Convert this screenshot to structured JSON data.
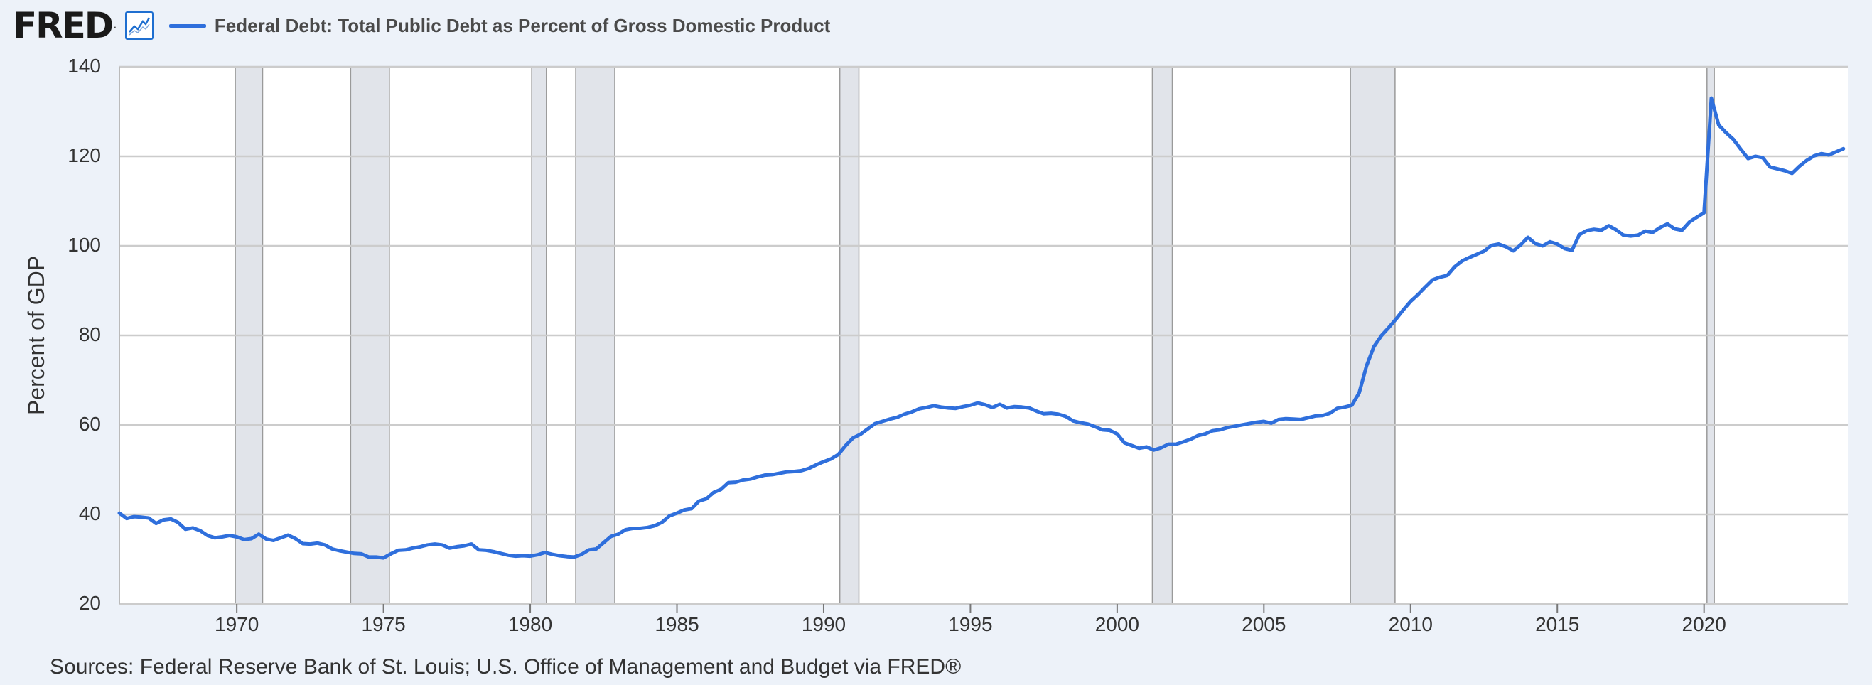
{
  "header": {
    "logo_text": "FRED",
    "logo_reg": ".",
    "legend_title": "Federal Debt: Total Public Debt as Percent of Gross Domestic Product"
  },
  "icons": {
    "graph_icon": "line-chart-icon"
  },
  "footer": {
    "source_text": "Sources: Federal Reserve Bank of St. Louis; U.S. Office of Management and Budget via FRED®"
  },
  "colors": {
    "background": "#edf2f9",
    "plot_background": "#ffffff",
    "series": "#2f6fdc",
    "recession": "#e1e4ea",
    "grid": "#cccccc"
  },
  "chart_data": {
    "type": "line",
    "title": "Federal Debt: Total Public Debt as Percent of Gross Domestic Product",
    "ylabel": "Percent of GDP",
    "xlabel": "",
    "ylim": [
      20,
      140
    ],
    "xlim": [
      1966.0,
      2024.9
    ],
    "yticks": [
      20,
      40,
      60,
      80,
      100,
      120,
      140
    ],
    "xticks": [
      1970,
      1975,
      1980,
      1985,
      1990,
      1995,
      2000,
      2005,
      2010,
      2015,
      2020
    ],
    "grid": true,
    "recessions": [
      [
        1969.95,
        1970.88
      ],
      [
        1973.88,
        1975.2
      ],
      [
        1980.05,
        1980.55
      ],
      [
        1981.55,
        1982.88
      ],
      [
        1990.55,
        1991.2
      ],
      [
        2001.2,
        2001.88
      ],
      [
        2007.95,
        2009.47
      ],
      [
        2020.1,
        2020.35
      ]
    ],
    "series": [
      {
        "x": [
          1966.0,
          1966.25,
          1966.5,
          1966.75,
          1967.0,
          1967.25,
          1967.5,
          1967.75,
          1968.0,
          1968.25,
          1968.5,
          1968.75,
          1969.0,
          1969.25,
          1969.5,
          1969.75,
          1970.0,
          1970.25,
          1970.5,
          1970.75,
          1971.0,
          1971.25,
          1971.5,
          1971.75,
          1972.0,
          1972.25,
          1972.5,
          1972.75,
          1973.0,
          1973.25,
          1973.5,
          1973.75,
          1974.0,
          1974.25,
          1974.5,
          1974.75,
          1975.0,
          1975.25,
          1975.5,
          1975.75,
          1976.0,
          1976.25,
          1976.5,
          1976.75,
          1977.0,
          1977.25,
          1977.5,
          1977.75,
          1978.0,
          1978.25,
          1978.5,
          1978.75,
          1979.0,
          1979.25,
          1979.5,
          1979.75,
          1980.0,
          1980.25,
          1980.5,
          1980.75,
          1981.0,
          1981.25,
          1981.5,
          1981.75,
          1982.0,
          1982.25,
          1982.5,
          1982.75,
          1983.0,
          1983.25,
          1983.5,
          1983.75,
          1984.0,
          1984.25,
          1984.5,
          1984.75,
          1985.0,
          1985.25,
          1985.5,
          1985.75,
          1986.0,
          1986.25,
          1986.5,
          1986.75,
          1987.0,
          1987.25,
          1987.5,
          1987.75,
          1988.0,
          1988.25,
          1988.5,
          1988.75,
          1989.0,
          1989.25,
          1989.5,
          1989.75,
          1990.0,
          1990.25,
          1990.5,
          1990.75,
          1991.0,
          1991.25,
          1991.5,
          1991.75,
          1992.0,
          1992.25,
          1992.5,
          1992.75,
          1993.0,
          1993.25,
          1993.5,
          1993.75,
          1994.0,
          1994.25,
          1994.5,
          1994.75,
          1995.0,
          1995.25,
          1995.5,
          1995.75,
          1996.0,
          1996.25,
          1996.5,
          1996.75,
          1997.0,
          1997.25,
          1997.5,
          1997.75,
          1998.0,
          1998.25,
          1998.5,
          1998.75,
          1999.0,
          1999.25,
          1999.5,
          1999.75,
          2000.0,
          2000.25,
          2000.5,
          2000.75,
          2001.0,
          2001.25,
          2001.5,
          2001.75,
          2002.0,
          2002.25,
          2002.5,
          2002.75,
          2003.0,
          2003.25,
          2003.5,
          2003.75,
          2004.0,
          2004.25,
          2004.5,
          2004.75,
          2005.0,
          2005.25,
          2005.5,
          2005.75,
          2006.0,
          2006.25,
          2006.5,
          2006.75,
          2007.0,
          2007.25,
          2007.5,
          2007.75,
          2008.0,
          2008.25,
          2008.5,
          2008.75,
          2009.0,
          2009.25,
          2009.5,
          2009.75,
          2010.0,
          2010.25,
          2010.5,
          2010.75,
          2011.0,
          2011.25,
          2011.5,
          2011.75,
          2012.0,
          2012.25,
          2012.5,
          2012.75,
          2013.0,
          2013.25,
          2013.5,
          2013.75,
          2014.0,
          2014.25,
          2014.5,
          2014.75,
          2015.0,
          2015.25,
          2015.5,
          2015.75,
          2016.0,
          2016.25,
          2016.5,
          2016.75,
          2017.0,
          2017.25,
          2017.5,
          2017.75,
          2018.0,
          2018.25,
          2018.5,
          2018.75,
          2019.0,
          2019.25,
          2019.5,
          2019.75,
          2020.0,
          2020.25,
          2020.5,
          2020.75,
          2021.0,
          2021.25,
          2021.5,
          2021.75,
          2022.0,
          2022.25,
          2022.5,
          2022.75,
          2023.0,
          2023.25,
          2023.5,
          2023.75,
          2024.0,
          2024.25,
          2024.5,
          2024.75
        ],
        "values": [
          40.3,
          39.1,
          39.5,
          39.4,
          39.2,
          38.0,
          38.8,
          39.0,
          38.2,
          36.7,
          37.0,
          36.4,
          35.3,
          34.8,
          35.0,
          35.3,
          35.0,
          34.4,
          34.6,
          35.6,
          34.5,
          34.2,
          34.8,
          35.4,
          34.6,
          33.5,
          33.4,
          33.6,
          33.2,
          32.3,
          31.9,
          31.6,
          31.3,
          31.2,
          30.5,
          30.5,
          30.3,
          31.2,
          32.0,
          32.1,
          32.5,
          32.8,
          33.2,
          33.4,
          33.2,
          32.5,
          32.8,
          33.0,
          33.4,
          32.1,
          32.0,
          31.7,
          31.3,
          30.9,
          30.7,
          30.8,
          30.7,
          31.0,
          31.5,
          31.1,
          30.8,
          30.6,
          30.5,
          31.1,
          32.1,
          32.3,
          33.7,
          35.1,
          35.6,
          36.6,
          36.9,
          36.9,
          37.1,
          37.5,
          38.3,
          39.7,
          40.3,
          41.0,
          41.3,
          43.0,
          43.5,
          44.9,
          45.6,
          47.1,
          47.2,
          47.7,
          47.9,
          48.4,
          48.8,
          48.9,
          49.2,
          49.5,
          49.6,
          49.8,
          50.3,
          51.1,
          51.8,
          52.4,
          53.4,
          55.4,
          57.1,
          57.9,
          59.1,
          60.3,
          60.8,
          61.3,
          61.7,
          62.4,
          62.9,
          63.6,
          63.9,
          64.3,
          64.0,
          63.8,
          63.7,
          64.1,
          64.4,
          64.9,
          64.5,
          63.9,
          64.6,
          63.8,
          64.1,
          64.0,
          63.8,
          63.1,
          62.5,
          62.6,
          62.4,
          61.9,
          60.9,
          60.5,
          60.2,
          59.6,
          58.9,
          58.8,
          58.0,
          56.0,
          55.4,
          54.8,
          55.1,
          54.4,
          54.9,
          55.7,
          55.7,
          56.2,
          56.8,
          57.6,
          58.0,
          58.7,
          58.9,
          59.4,
          59.7,
          60.0,
          60.3,
          60.6,
          60.8,
          60.4,
          61.2,
          61.4,
          61.3,
          61.2,
          61.6,
          62.0,
          62.1,
          62.6,
          63.7,
          64.0,
          64.4,
          67.2,
          73.2,
          77.5,
          79.9,
          81.7,
          83.6,
          85.7,
          87.6,
          89.1,
          90.8,
          92.4,
          93.0,
          93.4,
          95.3,
          96.6,
          97.4,
          98.1,
          98.8,
          100.1,
          100.4,
          99.8,
          98.9,
          100.2,
          101.9,
          100.5,
          100.0,
          100.9,
          100.4,
          99.4,
          99.0,
          102.5,
          103.4,
          103.7,
          103.5,
          104.5,
          103.6,
          102.4,
          102.2,
          102.4,
          103.3,
          103.0,
          104.1,
          104.9,
          103.8,
          103.5,
          105.3,
          106.4,
          107.4,
          133.0,
          127.0,
          125.3,
          123.8,
          121.6,
          119.5,
          120.0,
          119.7,
          117.6,
          117.2,
          116.8,
          116.2,
          117.8,
          119.1,
          120.1,
          120.6,
          120.3,
          121.0,
          121.7
        ]
      }
    ]
  }
}
